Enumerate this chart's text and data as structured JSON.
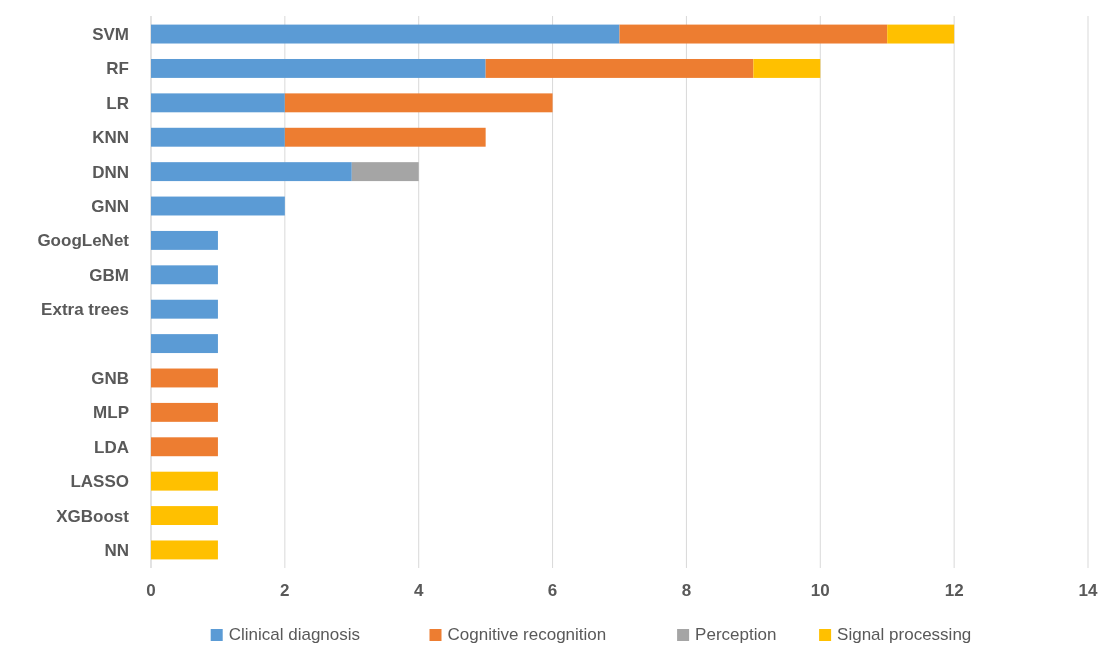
{
  "chart_data": {
    "type": "bar",
    "orientation": "horizontal",
    "stacked": true,
    "categories": [
      "SVM",
      "RF",
      "LR",
      "KNN",
      "DNN",
      "GNN",
      "GoogLeNet",
      "GBM",
      "Extra trees",
      null,
      "GNB",
      "MLP",
      "LDA",
      "LASSO",
      "XGBoost",
      "NN"
    ],
    "series": [
      {
        "name": "Clinical diagnosis",
        "color": "#5b9bd5",
        "values": [
          7,
          5,
          2,
          2,
          3,
          2,
          1,
          1,
          1,
          1,
          null,
          null,
          null,
          null,
          null,
          null
        ]
      },
      {
        "name": "Cognitive recognition",
        "color": "#ed7d31",
        "values": [
          4,
          4,
          4,
          3,
          null,
          null,
          null,
          null,
          null,
          null,
          1,
          1,
          1,
          null,
          null,
          null
        ]
      },
      {
        "name": "Perception",
        "color": "#a5a5a5",
        "values": [
          null,
          null,
          null,
          null,
          1,
          null,
          null,
          null,
          null,
          null,
          null,
          null,
          null,
          null,
          null,
          null
        ]
      },
      {
        "name": "Signal processing",
        "color": "#ffc000",
        "values": [
          1,
          1,
          null,
          null,
          null,
          null,
          null,
          null,
          null,
          null,
          null,
          null,
          null,
          1,
          1,
          1
        ]
      }
    ],
    "xlim": [
      0,
      14
    ],
    "xticks": [
      0,
      2,
      4,
      6,
      8,
      10,
      12,
      14
    ],
    "grid": "x",
    "legend": "bottom"
  }
}
